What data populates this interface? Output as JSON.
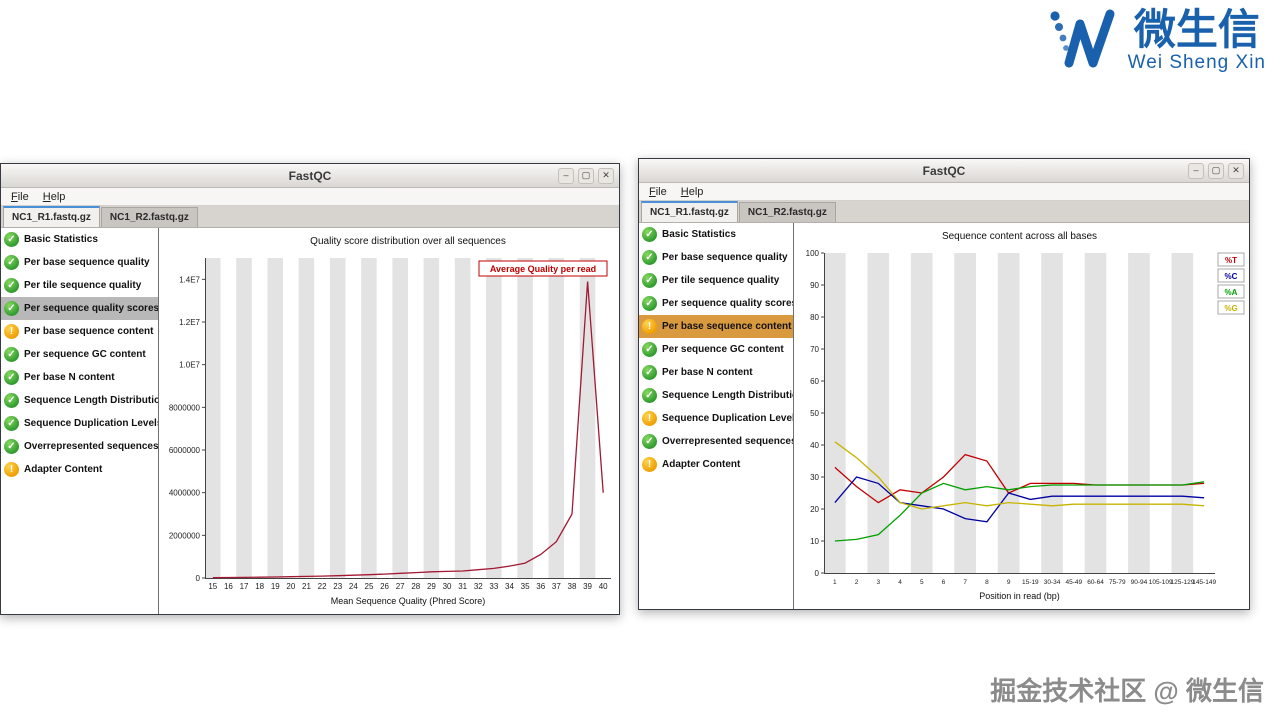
{
  "logo": {
    "brand_cn": "微生信",
    "brand_en": "Wei Sheng Xin",
    "color": "#1961ac"
  },
  "watermark": "掘金技术社区 @ 微生信",
  "chrome": {
    "minimize": "–",
    "maximize": "▢",
    "close": "✕"
  },
  "windows": {
    "left": {
      "title": "FastQC",
      "menu": [
        "File",
        "Help"
      ],
      "tabs": [
        {
          "label": "NC1_R1.fastq.gz",
          "active": true
        },
        {
          "label": "NC1_R2.fastq.gz",
          "active": false
        }
      ],
      "selected_bg": "#b8b8b8",
      "sidebar": [
        {
          "label": "Basic Statistics",
          "status": "pass",
          "selected": false
        },
        {
          "label": "Per base sequence quality",
          "status": "pass",
          "selected": false
        },
        {
          "label": "Per tile sequence quality",
          "status": "pass",
          "selected": false
        },
        {
          "label": "Per sequence quality scores",
          "status": "pass",
          "selected": true
        },
        {
          "label": "Per base sequence content",
          "status": "warn",
          "selected": false
        },
        {
          "label": "Per sequence GC content",
          "status": "pass",
          "selected": false
        },
        {
          "label": "Per base N content",
          "status": "pass",
          "selected": false
        },
        {
          "label": "Sequence Length Distribution",
          "status": "pass",
          "selected": false
        },
        {
          "label": "Sequence Duplication Levels",
          "status": "pass",
          "selected": false
        },
        {
          "label": "Overrepresented sequences",
          "status": "pass",
          "selected": false
        },
        {
          "label": "Adapter Content",
          "status": "warn",
          "selected": false
        }
      ]
    },
    "right": {
      "title": "FastQC",
      "menu": [
        "File",
        "Help"
      ],
      "tabs": [
        {
          "label": "NC1_R1.fastq.gz",
          "active": true
        },
        {
          "label": "NC1_R2.fastq.gz",
          "active": false
        }
      ],
      "selected_bg": "#d99a3f",
      "sidebar": [
        {
          "label": "Basic Statistics",
          "status": "pass",
          "selected": false
        },
        {
          "label": "Per base sequence quality",
          "status": "pass",
          "selected": false
        },
        {
          "label": "Per tile sequence quality",
          "status": "pass",
          "selected": false
        },
        {
          "label": "Per sequence quality scores",
          "status": "pass",
          "selected": false
        },
        {
          "label": "Per base sequence content",
          "status": "warn",
          "selected": true
        },
        {
          "label": "Per sequence GC content",
          "status": "pass",
          "selected": false
        },
        {
          "label": "Per base N content",
          "status": "pass",
          "selected": false
        },
        {
          "label": "Sequence Length Distribution",
          "status": "pass",
          "selected": false
        },
        {
          "label": "Sequence Duplication Levels",
          "status": "warn",
          "selected": false
        },
        {
          "label": "Overrepresented sequences",
          "status": "pass",
          "selected": false
        },
        {
          "label": "Adapter Content",
          "status": "warn",
          "selected": false
        }
      ]
    }
  },
  "chart_data": [
    {
      "id": "left-chart",
      "type": "line",
      "title": "Quality score distribution over all sequences",
      "xlabel": "Mean Sequence Quality (Phred Score)",
      "categories": [
        "15",
        "16",
        "17",
        "18",
        "19",
        "20",
        "21",
        "22",
        "23",
        "24",
        "25",
        "26",
        "27",
        "28",
        "29",
        "30",
        "31",
        "32",
        "33",
        "34",
        "35",
        "36",
        "37",
        "38",
        "39",
        "40"
      ],
      "ylim": [
        0,
        15000000
      ],
      "yticks": [
        {
          "v": 0,
          "label": "0"
        },
        {
          "v": 2000000,
          "label": "2000000"
        },
        {
          "v": 4000000,
          "label": "4000000"
        },
        {
          "v": 6000000,
          "label": "6000000"
        },
        {
          "v": 8000000,
          "label": "8000000"
        },
        {
          "v": 10000000,
          "label": "1.0E7"
        },
        {
          "v": 12000000,
          "label": "1.2E7"
        },
        {
          "v": 14000000,
          "label": "1.4E7"
        }
      ],
      "series": [
        {
          "name": "Average Quality per read",
          "color": "#a31832",
          "values": [
            20000,
            25000,
            30000,
            38000,
            48000,
            60000,
            75000,
            90000,
            110000,
            130000,
            155000,
            185000,
            220000,
            255000,
            290000,
            310000,
            330000,
            390000,
            450000,
            560000,
            700000,
            1100000,
            1700000,
            3000000,
            13900000,
            4000000
          ]
        }
      ],
      "legend_box": {
        "label": "Average Quality per read",
        "color": "#c00000"
      },
      "grid": "vertical-stripes",
      "legend_position": "top-right-inside"
    },
    {
      "id": "right-chart",
      "type": "line",
      "title": "Sequence content across all bases",
      "xlabel": "Position in read (bp)",
      "categories": [
        "1",
        "2",
        "3",
        "4",
        "5",
        "6",
        "7",
        "8",
        "9",
        "15-19",
        "30-34",
        "45-49",
        "60-64",
        "75-79",
        "90-94",
        "105-109",
        "125-129",
        "145-149"
      ],
      "ylim": [
        0,
        100
      ],
      "yticks": [
        {
          "v": 0,
          "label": "0"
        },
        {
          "v": 10,
          "label": "10"
        },
        {
          "v": 20,
          "label": "20"
        },
        {
          "v": 30,
          "label": "30"
        },
        {
          "v": 40,
          "label": "40"
        },
        {
          "v": 50,
          "label": "50"
        },
        {
          "v": 60,
          "label": "60"
        },
        {
          "v": 70,
          "label": "70"
        },
        {
          "v": 80,
          "label": "80"
        },
        {
          "v": 90,
          "label": "90"
        },
        {
          "v": 100,
          "label": "100"
        }
      ],
      "series": [
        {
          "name": "%T",
          "color": "#c00000",
          "values": [
            33,
            27,
            22,
            26,
            25,
            30,
            37,
            35,
            25,
            28,
            28,
            28,
            27.5,
            27.5,
            27.5,
            27.5,
            27.5,
            28
          ]
        },
        {
          "name": "%C",
          "color": "#0000a0",
          "values": [
            22,
            30,
            28,
            22,
            21,
            20,
            17,
            16,
            25,
            23,
            24,
            24,
            24,
            24,
            24,
            24,
            24,
            23.5
          ]
        },
        {
          "name": "%A",
          "color": "#00a000",
          "values": [
            10,
            10.5,
            12,
            18,
            25,
            28,
            26,
            27,
            26,
            27,
            27.5,
            27.5,
            27.5,
            27.5,
            27.5,
            27.5,
            27.5,
            28.5
          ]
        },
        {
          "name": "%G",
          "color": "#c8b400",
          "values": [
            41,
            36,
            30,
            22,
            20,
            21,
            22,
            21,
            22,
            21.5,
            21,
            21.5,
            21.5,
            21.5,
            21.5,
            21.5,
            21.5,
            21
          ]
        }
      ],
      "legend_side": true,
      "grid": "vertical-stripes",
      "legend_position": "top-right-outside"
    }
  ]
}
